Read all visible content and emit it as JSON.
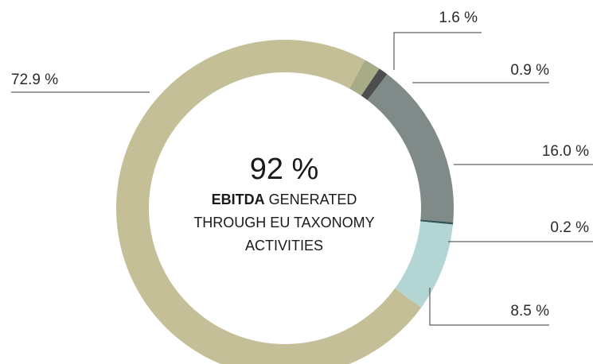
{
  "chart_data": {
    "type": "pie",
    "style": "donut",
    "center": {
      "value": "92 %",
      "highlight": "EBITDA",
      "line1_rest": "GENERATED",
      "line2": "THROUGH EU TAXONOMY",
      "line3": "ACTIVITIES"
    },
    "slices": [
      {
        "value": 1.6,
        "label": "1.6 %",
        "color": "#a7ab86"
      },
      {
        "value": 0.9,
        "label": "0.9 %",
        "color": "#4d4d4d"
      },
      {
        "value": 16.0,
        "label": "16.0 %",
        "color": "#7f8a89"
      },
      {
        "value": 0.2,
        "label": "0.2 %",
        "color": "#2f5552"
      },
      {
        "value": 8.5,
        "label": "8.5 %",
        "color": "#b3d6d5"
      },
      {
        "value": 72.9,
        "label": "72.9 %",
        "color": "#c5bf98"
      }
    ]
  }
}
